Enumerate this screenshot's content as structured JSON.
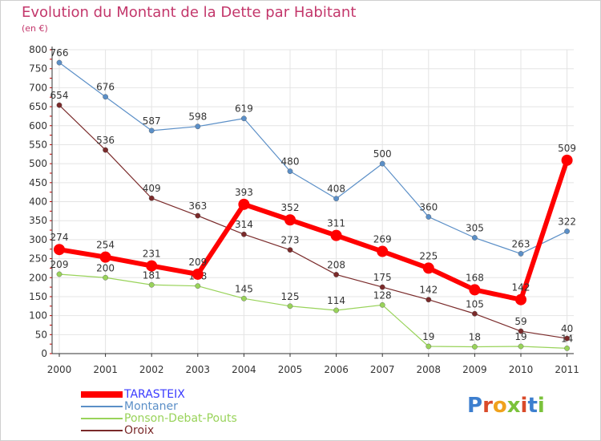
{
  "title": "Evolution du Montant de la Dette par Habitant",
  "subtitle": "(en €)",
  "logo_text": "Proxiti",
  "colors": {
    "title": "#c3376b",
    "grid": "#e4e4e4",
    "axis": "#333333",
    "tick_marks": "#cc0000"
  },
  "chart_data": {
    "type": "line",
    "x": [
      "2000",
      "2001",
      "2002",
      "2003",
      "2004",
      "2005",
      "2006",
      "2007",
      "2008",
      "2009",
      "2010",
      "2011"
    ],
    "ylim": [
      0,
      800
    ],
    "yticks": [
      0,
      50,
      100,
      150,
      200,
      250,
      300,
      350,
      400,
      450,
      500,
      550,
      600,
      650,
      700,
      750,
      800
    ],
    "grid": true,
    "legend_position": "bottom-left",
    "series": [
      {
        "name": "TARASTEIX",
        "color": "#ff0000",
        "values": [
          274,
          254,
          231,
          209,
          393,
          352,
          311,
          269,
          225,
          168,
          142,
          509
        ]
      },
      {
        "name": "Montaner",
        "color": "#5b8fc7",
        "values": [
          766,
          676,
          587,
          598,
          619,
          480,
          408,
          500,
          360,
          305,
          263,
          322
        ]
      },
      {
        "name": "Ponson-Debat-Pouts",
        "color": "#99d35a",
        "values": [
          209,
          200,
          181,
          178,
          145,
          125,
          114,
          128,
          19,
          18,
          19,
          14
        ]
      },
      {
        "name": "Oroix",
        "color": "#7a2a2a",
        "values": [
          654,
          536,
          409,
          363,
          314,
          273,
          208,
          175,
          142,
          105,
          59,
          40
        ]
      }
    ]
  }
}
